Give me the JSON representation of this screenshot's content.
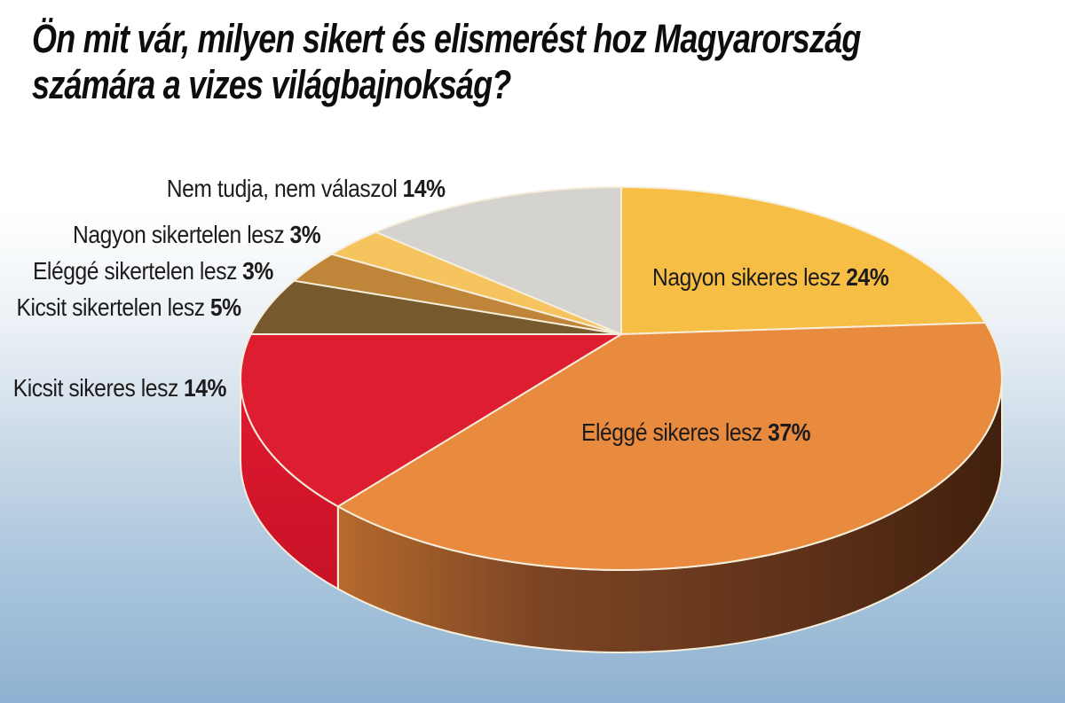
{
  "page": {
    "title_line1": "Ön mit vár, milyen sikert és elismerést hoz Magyarország",
    "title_line2": "számára a vizes világbajnokság?"
  },
  "colors": {
    "background_top": "#FFFFFF",
    "background_bottom": "#8FB2D2",
    "slice_stroke": "#F6EEDA",
    "title_text": "#0D0D0E",
    "label_text": "#1D1B1C"
  },
  "chart_data": {
    "type": "pie",
    "style": "3d",
    "title": "Ön mit vár, milyen sikert és elismerést hoz Magyarország számára a vizes világbajnokság?",
    "unit": "%",
    "start_angle_deg": -90,
    "clockwise": true,
    "legend_position": "around-pie",
    "slices": [
      {
        "label": "Nagyon sikeres lesz",
        "value": 24,
        "value_label": "24%",
        "color": "#F7BE45"
      },
      {
        "label": "Eléggé sikeres lesz",
        "value": 37,
        "value_label": "37%",
        "color": "#E98B3E",
        "side": {
          "dir": "h",
          "stops": [
            {
              "offset": 0,
              "color": "#B66A2D"
            },
            {
              "offset": 0.3,
              "color": "#7C4524"
            },
            {
              "offset": 0.7,
              "color": "#5E3119"
            },
            {
              "offset": 1,
              "color": "#41200D"
            }
          ]
        }
      },
      {
        "label": "Kicsit sikeres lesz",
        "value": 14,
        "value_label": "14%",
        "color": "#DD1E30",
        "side": {
          "dir": "v",
          "stops": [
            {
              "offset": 0,
              "color": "#E01A30"
            },
            {
              "offset": 1,
              "color": "#C81226"
            }
          ]
        }
      },
      {
        "label": "Kicsit sikertelen lesz",
        "value": 5,
        "value_label": "5%",
        "color": "#77592E"
      },
      {
        "label": "Eléggé sikertelen lesz",
        "value": 3,
        "value_label": "3%",
        "color": "#BF8538"
      },
      {
        "label": "Nagyon sikertelen lesz",
        "value": 3,
        "value_label": "3%",
        "color": "#F5C45F"
      },
      {
        "label": "Nem tudja, nem válaszol",
        "value": 14,
        "value_label": "14%",
        "color": "#D4D3CF"
      }
    ]
  }
}
